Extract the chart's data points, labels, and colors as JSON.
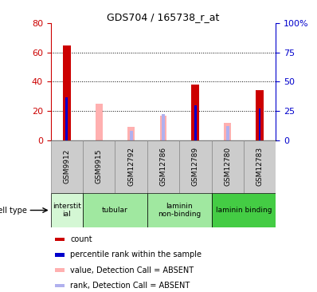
{
  "title": "GDS704 / 165738_r_at",
  "samples": [
    "GSM9912",
    "GSM9915",
    "GSM12792",
    "GSM12786",
    "GSM12789",
    "GSM12780",
    "GSM12783"
  ],
  "count_values": [
    65,
    0,
    0,
    0,
    38,
    0,
    34
  ],
  "rank_values": [
    37,
    0,
    0,
    0,
    30,
    0,
    27
  ],
  "absent_value": [
    0,
    25,
    9,
    17,
    0,
    12,
    0
  ],
  "absent_rank": [
    0,
    0,
    8,
    22,
    0,
    12,
    0
  ],
  "ylim_left": [
    0,
    80
  ],
  "ylim_right": [
    0,
    100
  ],
  "yticks_left": [
    0,
    20,
    40,
    60,
    80
  ],
  "yticks_right": [
    0,
    25,
    50,
    75,
    100
  ],
  "ytick_labels_right": [
    "0",
    "25",
    "50",
    "75",
    "100%"
  ],
  "left_axis_color": "#cc0000",
  "right_axis_color": "#0000cc",
  "count_color": "#cc0000",
  "rank_color": "#0000cc",
  "absent_value_color": "#ffb0b0",
  "absent_rank_color": "#b0b0ee",
  "cell_regions": [
    {
      "label": "interstit\nial",
      "start": 0,
      "end": 1,
      "color": "#d4f7d4"
    },
    {
      "label": "tubular",
      "start": 1,
      "end": 3,
      "color": "#a0e8a0"
    },
    {
      "label": "laminin\nnon-binding",
      "start": 3,
      "end": 5,
      "color": "#a0e8a0"
    },
    {
      "label": "laminin binding",
      "start": 5,
      "end": 7,
      "color": "#44cc44"
    }
  ],
  "legend_items": [
    {
      "color": "#cc0000",
      "label": "count"
    },
    {
      "color": "#0000cc",
      "label": "percentile rank within the sample"
    },
    {
      "color": "#ffb0b0",
      "label": "value, Detection Call = ABSENT"
    },
    {
      "color": "#b0b0ee",
      "label": "rank, Detection Call = ABSENT"
    }
  ]
}
